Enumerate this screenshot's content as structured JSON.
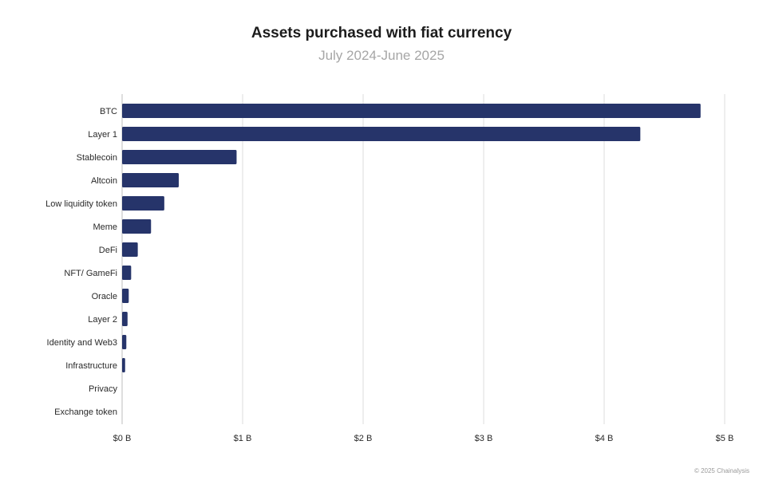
{
  "chart_data": {
    "type": "bar",
    "orientation": "horizontal",
    "title": "Assets purchased with fiat currency",
    "subtitle": "July 2024-June 2025",
    "categories": [
      "BTC",
      "Layer 1",
      "Stablecoin",
      "Altcoin",
      "Low liquidity token",
      "Meme",
      "DeFi",
      "NFT/ GameFi",
      "Oracle",
      "Layer 2",
      "Identity and Web3",
      "Infrastructure",
      "Privacy",
      "Exchange token"
    ],
    "values": [
      4.8,
      4.3,
      0.95,
      0.47,
      0.35,
      0.24,
      0.13,
      0.075,
      0.055,
      0.045,
      0.035,
      0.025,
      0.0,
      0.0
    ],
    "value_unit": "B",
    "xlim": [
      0,
      5
    ],
    "x_ticks": [
      0,
      1,
      2,
      3,
      4,
      5
    ],
    "x_tick_labels": [
      "$0 B",
      "$1 B",
      "$2 B",
      "$3 B",
      "$4 B",
      "$5 B"
    ],
    "grid": "vertical",
    "bar_color": "#26346a",
    "grid_color": "#dcdcdc"
  },
  "footer": {
    "credit": "© 2025 Chainalysis"
  }
}
